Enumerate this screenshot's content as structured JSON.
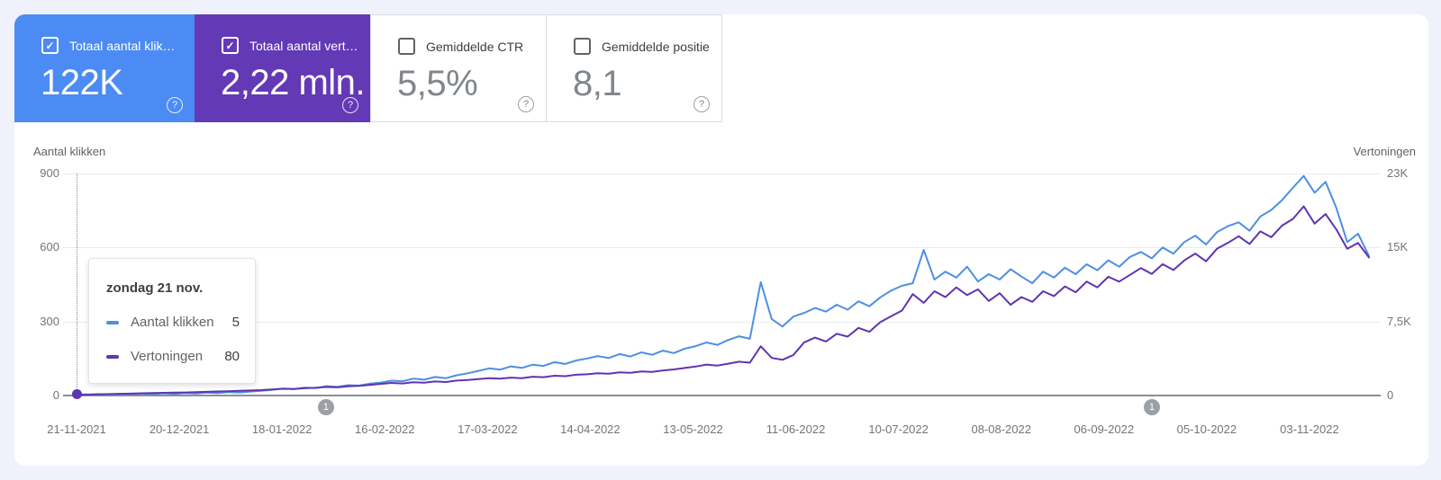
{
  "colors": {
    "page_bg": "#EFF2FB",
    "clicks_card_bg": "#4C8BF4",
    "impressions_card_bg": "#6439B5",
    "clicks_line": "#4D8FE3",
    "impressions_line": "#5E35B1",
    "annotation_gray": "#9AA0A6"
  },
  "icons": {
    "check": "✓",
    "help": "?"
  },
  "cards": [
    {
      "label": "Totaal aantal klik…",
      "value": "122K",
      "state": "selected"
    },
    {
      "label": "Totaal aantal vert…",
      "value": "2,22 mln.",
      "state": "selected"
    },
    {
      "label": "Gemiddelde CTR",
      "value": "5,5%",
      "state": "unselected"
    },
    {
      "label": "Gemiddelde positie",
      "value": "8,1",
      "state": "unselected"
    }
  ],
  "tooltip": {
    "title": "zondag 21 nov.",
    "rows": [
      {
        "label": "Aantal klikken",
        "value": "5",
        "color": "#4D8FE3"
      },
      {
        "label": "Vertoningen",
        "value": "80",
        "color": "#5E35B1"
      }
    ]
  },
  "chart_data": {
    "type": "line",
    "grid": true,
    "legend_position": "none",
    "left_axis": {
      "title": "Aantal klikken",
      "ticks": [
        "900",
        "600",
        "300",
        "0"
      ],
      "max": 900
    },
    "right_axis": {
      "title": "Vertoningen",
      "ticks": [
        "23K",
        "15K",
        "7,5K",
        "0"
      ],
      "max": 23000
    },
    "x_tick_labels": [
      "21-11-2021",
      "20-12-2021",
      "18-01-2022",
      "16-02-2022",
      "17-03-2022",
      "14-04-2022",
      "13-05-2022",
      "11-06-2022",
      "10-07-2022",
      "08-08-2022",
      "06-09-2022",
      "05-10-2022",
      "03-11-2022"
    ],
    "annotations": [
      {
        "label": "1",
        "x_fraction": 0.193
      },
      {
        "label": "1",
        "x_fraction": 0.832
      }
    ],
    "series": [
      {
        "name": "Aantal klikken",
        "axis": "left",
        "color": "#4D8FE3",
        "values": [
          5,
          3,
          6,
          4,
          7,
          5,
          8,
          6,
          9,
          7,
          10,
          8,
          12,
          10,
          14,
          12,
          16,
          19,
          23,
          28,
          26,
          32,
          30,
          38,
          35,
          42,
          40,
          48,
          52,
          60,
          58,
          68,
          64,
          75,
          70,
          82,
          90,
          100,
          110,
          105,
          118,
          112,
          125,
          120,
          135,
          128,
          142,
          150,
          160,
          152,
          168,
          158,
          175,
          165,
          182,
          172,
          190,
          200,
          215,
          205,
          225,
          240,
          230,
          460,
          310,
          280,
          320,
          335,
          355,
          340,
          368,
          348,
          382,
          362,
          398,
          425,
          445,
          455,
          590,
          470,
          502,
          478,
          522,
          462,
          492,
          470,
          512,
          482,
          455,
          502,
          478,
          518,
          492,
          532,
          508,
          548,
          522,
          562,
          582,
          556,
          600,
          575,
          622,
          648,
          612,
          662,
          686,
          702,
          668,
          726,
          752,
          792,
          842,
          890,
          822,
          866,
          760,
          622,
          656,
          566
        ]
      },
      {
        "name": "Vertoningen",
        "axis": "right",
        "color": "#5E35B1",
        "values": [
          80,
          100,
          120,
          150,
          180,
          200,
          230,
          260,
          280,
          300,
          320,
          350,
          380,
          420,
          450,
          480,
          520,
          560,
          620,
          700,
          680,
          750,
          800,
          880,
          850,
          950,
          1000,
          1100,
          1200,
          1300,
          1250,
          1380,
          1320,
          1450,
          1400,
          1550,
          1600,
          1700,
          1800,
          1750,
          1850,
          1800,
          1950,
          1900,
          2050,
          2000,
          2150,
          2200,
          2300,
          2250,
          2400,
          2350,
          2500,
          2450,
          2600,
          2700,
          2850,
          3000,
          3200,
          3100,
          3300,
          3500,
          3400,
          5100,
          3900,
          3700,
          4200,
          5500,
          6000,
          5600,
          6400,
          6100,
          7000,
          6600,
          7600,
          8200,
          8800,
          10500,
          9600,
          10800,
          10200,
          11200,
          10400,
          11000,
          9800,
          10600,
          9400,
          10200,
          9700,
          10800,
          10300,
          11300,
          10700,
          11800,
          11200,
          12300,
          11800,
          12500,
          13200,
          12600,
          13600,
          13000,
          14000,
          14700,
          13900,
          15200,
          15800,
          16500,
          15700,
          17000,
          16400,
          17600,
          18300,
          19600,
          17800,
          18800,
          17200,
          15200,
          15800,
          14300
        ]
      }
    ]
  }
}
